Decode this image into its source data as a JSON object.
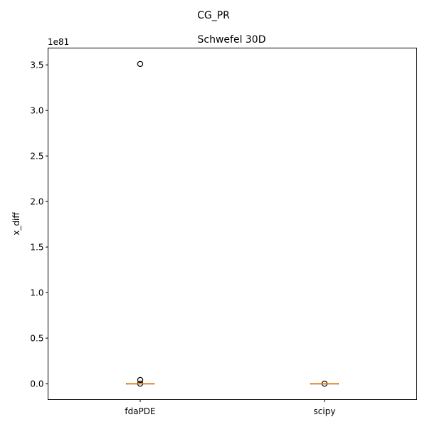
{
  "suptitle": "CG_PR",
  "chart_data": {
    "type": "box",
    "title": "Schwefel 30D",
    "xlabel": "",
    "ylabel": "x_diff",
    "y_scale_label": "1e81",
    "y_scale": 1e+81,
    "ylim": [
      -0.175,
      3.685
    ],
    "yticks": [
      0.0,
      0.5,
      1.0,
      1.5,
      2.0,
      2.5,
      3.0,
      3.5
    ],
    "ytick_labels": [
      "0.0",
      "0.5",
      "1.0",
      "1.5",
      "2.0",
      "2.5",
      "3.0",
      "3.5"
    ],
    "categories": [
      "fdaPDE",
      "scipy"
    ],
    "series": [
      {
        "name": "fdaPDE",
        "median": 0.0,
        "q1": 0.0,
        "q3": 0.0,
        "whisker_low": 0.0,
        "whisker_high": 0.0,
        "outliers": [
          3.51,
          0.04,
          0.0
        ]
      },
      {
        "name": "scipy",
        "median": 0.0,
        "q1": 0.0,
        "q3": 0.0,
        "whisker_low": 0.0,
        "whisker_high": 0.0,
        "outliers": [
          0.0
        ]
      }
    ],
    "colors": {
      "median": "#ff7f0e",
      "box": "#000000",
      "outlier": "#000000"
    },
    "grid": false
  }
}
